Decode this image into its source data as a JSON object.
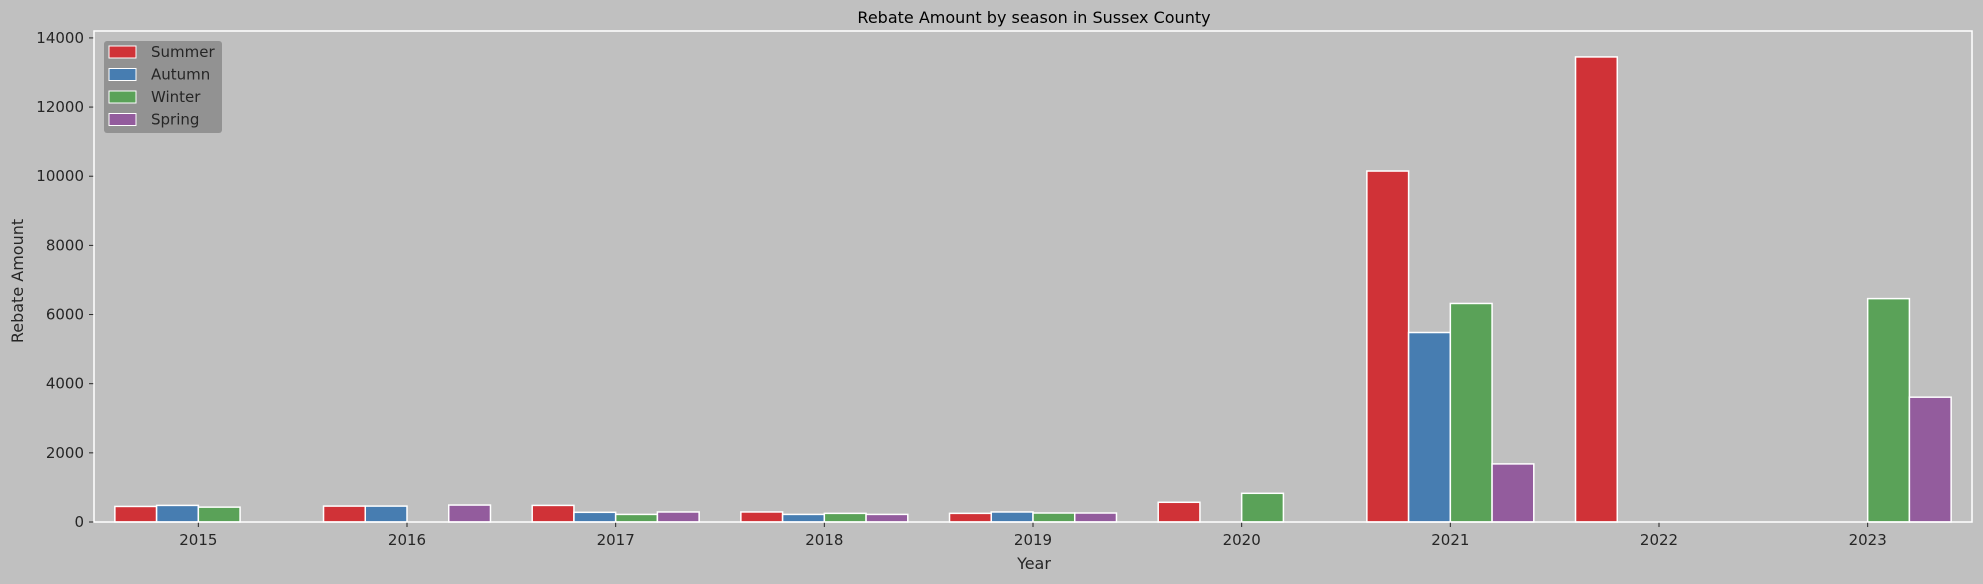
{
  "chart_data": {
    "type": "bar",
    "title": "Rebate Amount by season in Sussex County",
    "xlabel": "Year",
    "ylabel": "Rebate Amount",
    "categories": [
      "2015",
      "2016",
      "2017",
      "2018",
      "2019",
      "2020",
      "2021",
      "2022",
      "2023"
    ],
    "ylim": [
      0,
      14200
    ],
    "yticks": [
      0,
      2000,
      4000,
      6000,
      8000,
      10000,
      12000,
      14000
    ],
    "grid": false,
    "legend_position": "top-left",
    "series": [
      {
        "name": "Summer",
        "color": "#d03237",
        "values": [
          450,
          460,
          480,
          290,
          250,
          570,
          10150,
          13450,
          null
        ]
      },
      {
        "name": "Autumn",
        "color": "#477db1",
        "values": [
          480,
          460,
          280,
          220,
          290,
          null,
          5480,
          null,
          null
        ]
      },
      {
        "name": "Winter",
        "color": "#5aa258",
        "values": [
          430,
          null,
          220,
          250,
          260,
          830,
          6320,
          null,
          6460
        ]
      },
      {
        "name": "Spring",
        "color": "#935c9d",
        "values": [
          null,
          490,
          290,
          220,
          260,
          null,
          1680,
          null,
          3610
        ]
      }
    ]
  }
}
